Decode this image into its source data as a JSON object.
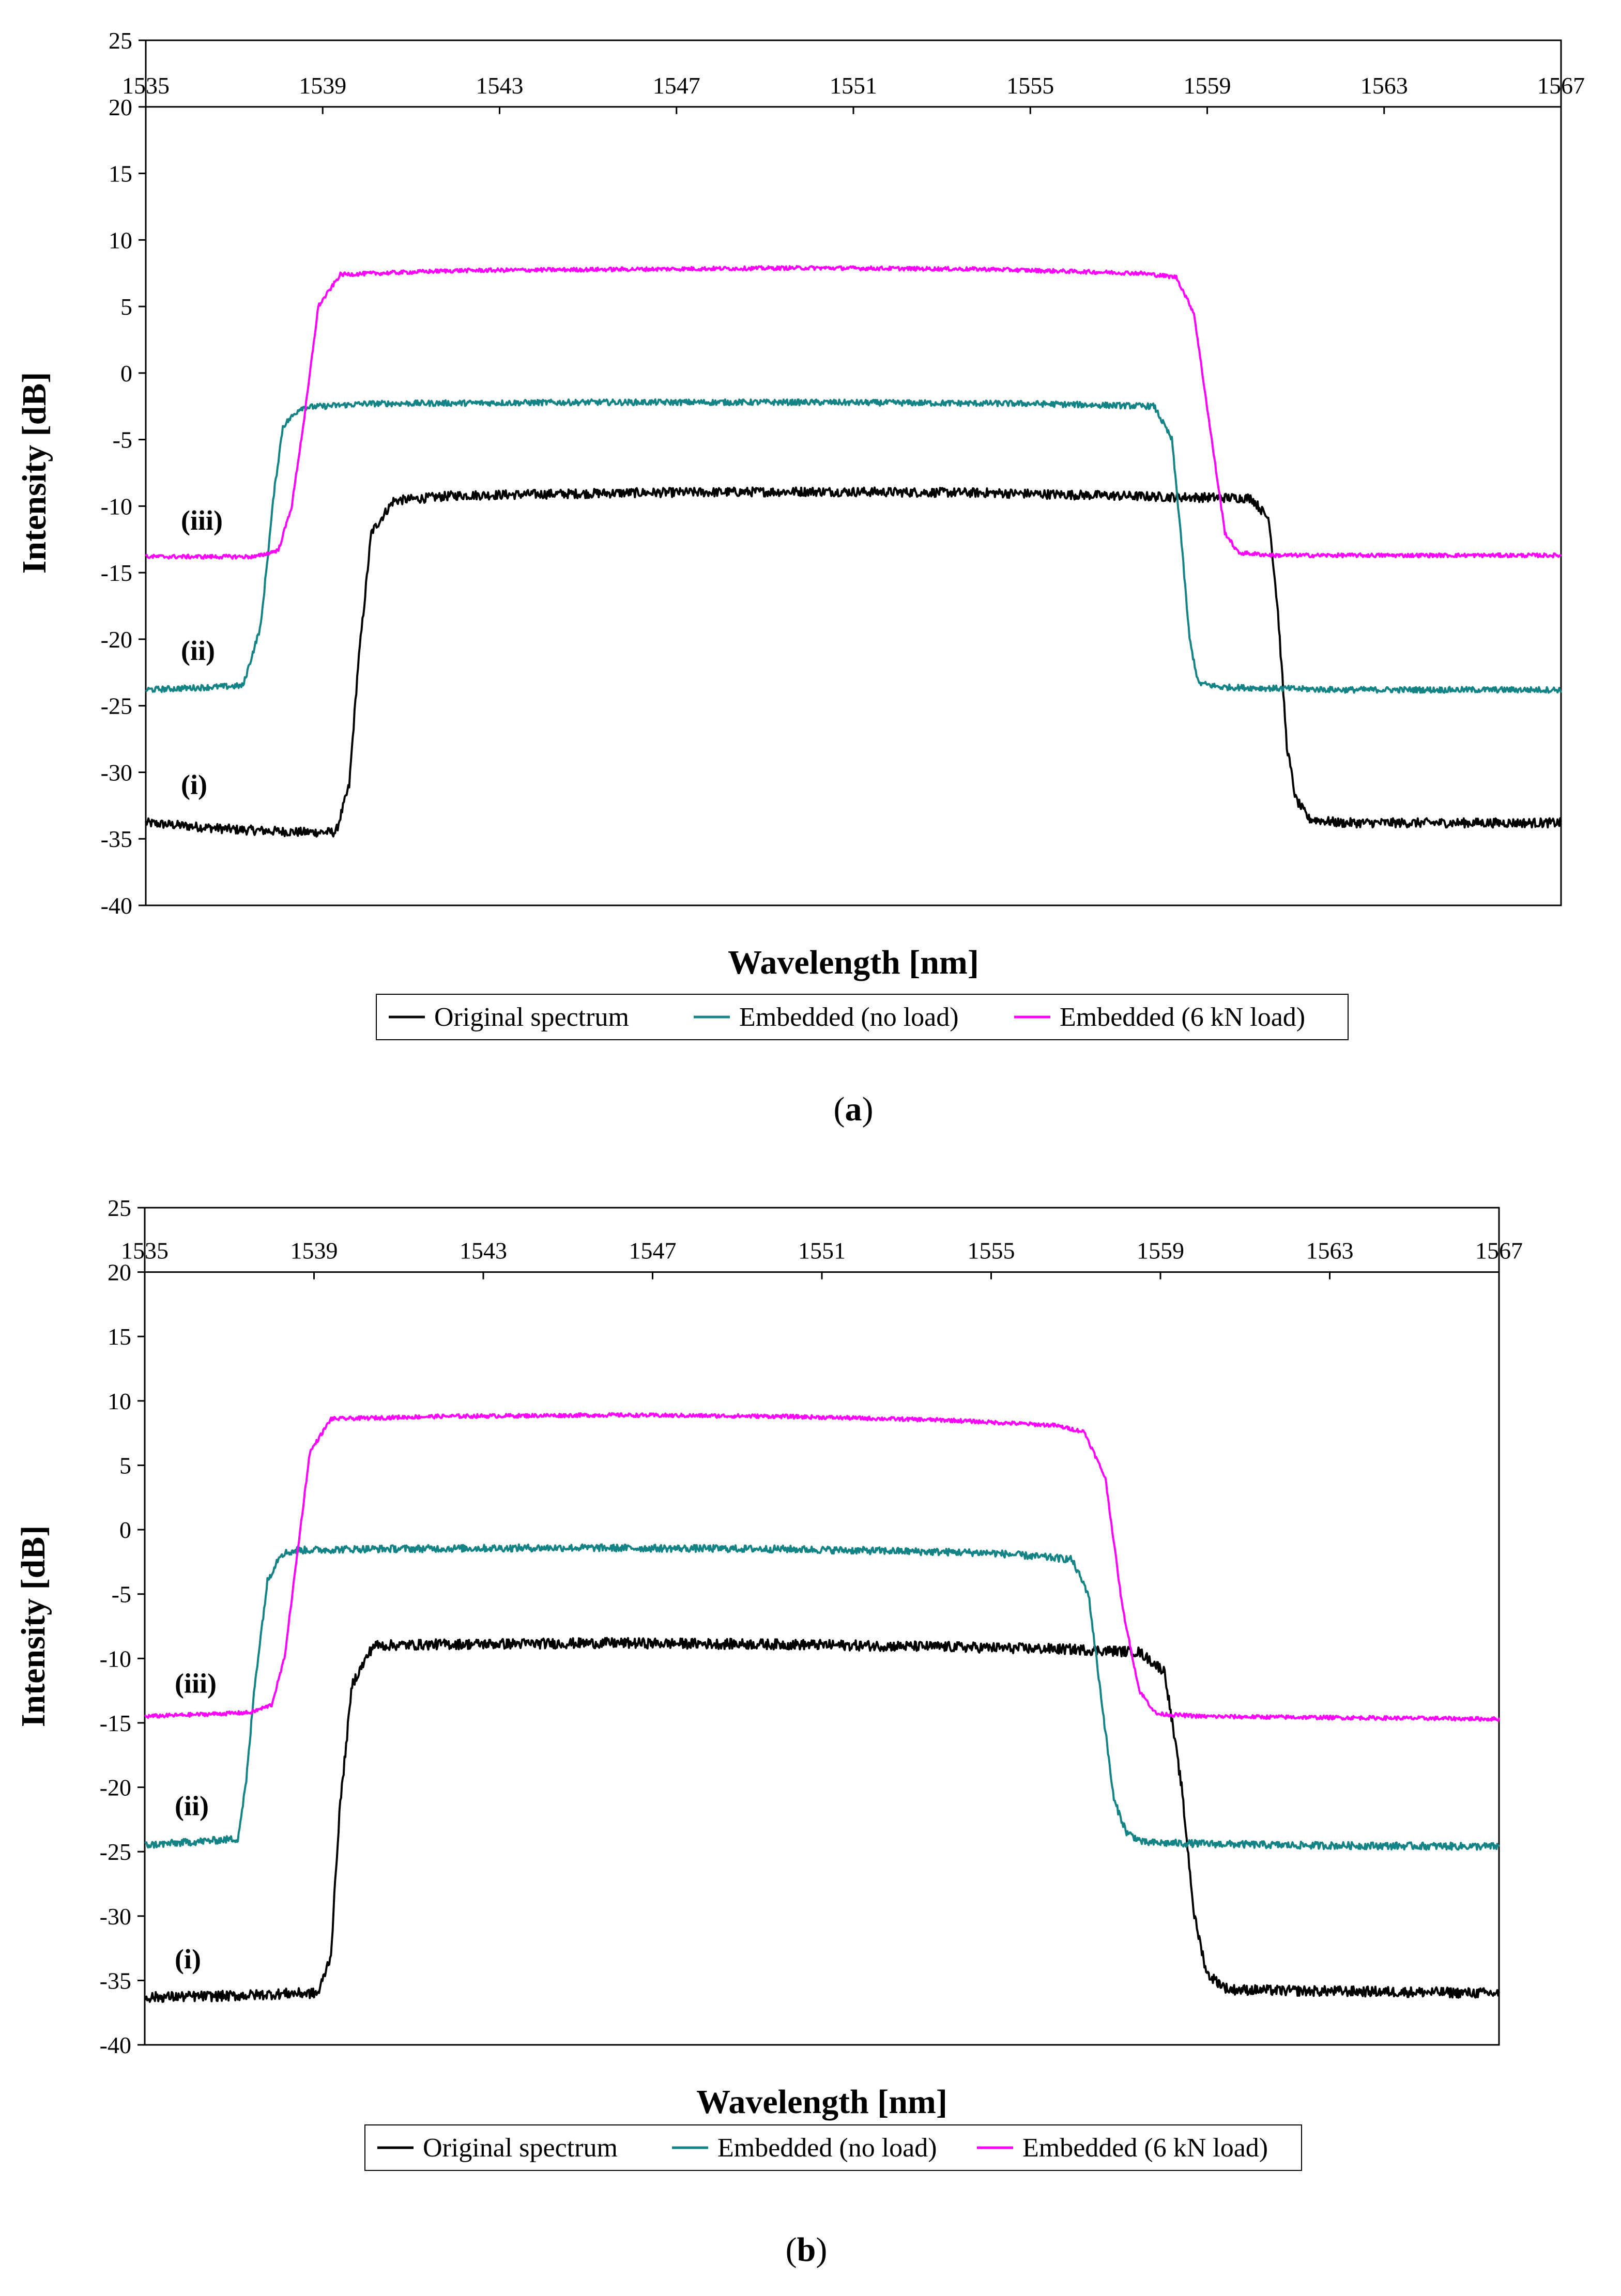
{
  "chart_data": [
    {
      "type": "line",
      "panel_label": "a",
      "title": "",
      "xlabel": "Wavelength [nm]",
      "ylabel": "Intensity [dB]",
      "xlim": [
        1535,
        1567
      ],
      "ylim": [
        -40,
        25
      ],
      "xticks": [
        "1535",
        "1539",
        "1543",
        "1547",
        "1551",
        "1555",
        "1559",
        "1563",
        "1567"
      ],
      "yticks": [
        "25",
        "20",
        "15",
        "10",
        "5",
        "0",
        "-5",
        "-10",
        "-15",
        "-20",
        "-25",
        "-30",
        "-35",
        "-40"
      ],
      "x_axis_position": "top, at y = 20",
      "legend_position": "bottom",
      "curve_labels": [
        {
          "text": "(iii)",
          "series": "Embedded (6 kN load)"
        },
        {
          "text": "(ii)",
          "series": "Embedded (no load)"
        },
        {
          "text": "(i)",
          "series": "Original spectrum"
        }
      ],
      "series": [
        {
          "name": "Original spectrum",
          "color": "#000000",
          "x": [
            1535,
            1537,
            1538.5,
            1539.3,
            1539.6,
            1539.8,
            1540.1,
            1540.6,
            1542,
            1546,
            1550,
            1554,
            1558,
            1560,
            1560.4,
            1560.6,
            1560.8,
            1561.0,
            1561.3,
            1562,
            1565,
            1567
          ],
          "y": [
            -33.8,
            -34.3,
            -34.5,
            -34.5,
            -31,
            -22,
            -12,
            -9.6,
            -9.2,
            -9.0,
            -8.9,
            -9.0,
            -9.3,
            -9.4,
            -11,
            -18,
            -28,
            -32,
            -33.5,
            -33.8,
            -33.8,
            -33.8
          ],
          "noise_db": 0.35
        },
        {
          "name": "Embedded (no load)",
          "color": "#138385",
          "x": [
            1535,
            1537.2,
            1537.6,
            1537.9,
            1538.1,
            1538.5,
            1540,
            1545,
            1550,
            1555,
            1557.8,
            1558.2,
            1558.4,
            1558.6,
            1558.8,
            1559.3,
            1562,
            1567
          ],
          "y": [
            -23.8,
            -23.5,
            -19,
            -9,
            -4,
            -2.6,
            -2.3,
            -2.2,
            -2.2,
            -2.3,
            -2.5,
            -5,
            -12,
            -20,
            -23.3,
            -23.6,
            -23.8,
            -23.8
          ],
          "noise_db": 0.22
        },
        {
          "name": "Embedded (6 kN load)",
          "color": "#ff00ff",
          "x": [
            1535,
            1537.5,
            1538,
            1538.3,
            1538.6,
            1538.9,
            1539.4,
            1542,
            1546,
            1550,
            1554,
            1557.5,
            1558.3,
            1558.7,
            1559.1,
            1559.4,
            1559.7,
            1560.5,
            1567
          ],
          "y": [
            -13.8,
            -13.8,
            -13.3,
            -10,
            -3,
            5,
            7.4,
            7.7,
            7.8,
            7.9,
            7.8,
            7.5,
            7.2,
            4.5,
            -5,
            -12,
            -13.5,
            -13.7,
            -13.7
          ],
          "noise_db": 0.15
        }
      ]
    },
    {
      "type": "line",
      "panel_label": "b",
      "title": "",
      "xlabel": "Wavelength [nm]",
      "ylabel": "Intensity [dB]",
      "xlim": [
        1535,
        1567
      ],
      "ylim": [
        -40,
        25
      ],
      "xticks": [
        "1535",
        "1539",
        "1543",
        "1547",
        "1551",
        "1555",
        "1559",
        "1563",
        "1567"
      ],
      "yticks": [
        "25",
        "20",
        "15",
        "10",
        "5",
        "0",
        "-5",
        "-10",
        "-15",
        "-20",
        "-25",
        "-30",
        "-35",
        "-40"
      ],
      "x_axis_position": "top, at y = 20",
      "legend_position": "bottom",
      "curve_labels": [
        {
          "text": "(iii)",
          "series": "Embedded (6 kN load)"
        },
        {
          "text": "(ii)",
          "series": "Embedded (no load)"
        },
        {
          "text": "(i)",
          "series": "Original spectrum"
        }
      ],
      "series": [
        {
          "name": "Original spectrum",
          "color": "#000000",
          "x": [
            1535,
            1537,
            1538.5,
            1539.1,
            1539.4,
            1539.6,
            1539.9,
            1540.4,
            1542,
            1546,
            1550,
            1554,
            1557,
            1558.5,
            1559.1,
            1559.5,
            1559.8,
            1560.1,
            1560.6,
            1562,
            1565,
            1567
          ],
          "y": [
            -36.3,
            -36.2,
            -36.0,
            -36.0,
            -33,
            -22,
            -12,
            -9.0,
            -8.9,
            -8.8,
            -8.9,
            -9.1,
            -9.3,
            -9.5,
            -11,
            -20,
            -30,
            -34.5,
            -35.7,
            -35.8,
            -35.9,
            -36.0
          ],
          "noise_db": 0.4
        },
        {
          "name": "Embedded (no load)",
          "color": "#138385",
          "x": [
            1535,
            1537.2,
            1537.4,
            1537.6,
            1537.9,
            1538.2,
            1538.6,
            1540,
            1545,
            1550,
            1555,
            1556.9,
            1557.3,
            1557.6,
            1557.9,
            1558.2,
            1558.6,
            1562,
            1567
          ],
          "y": [
            -24.5,
            -24.0,
            -19.5,
            -12,
            -4,
            -1.9,
            -1.6,
            -1.5,
            -1.4,
            -1.5,
            -1.8,
            -2.3,
            -5,
            -13,
            -21,
            -23.5,
            -24.3,
            -24.5,
            -24.6
          ],
          "noise_db": 0.28
        },
        {
          "name": "Embedded (6 kN load)",
          "color": "#ff00ff",
          "x": [
            1535,
            1537.5,
            1538,
            1538.3,
            1538.6,
            1538.9,
            1539.4,
            1542,
            1546,
            1550,
            1554,
            1556.5,
            1557.2,
            1557.7,
            1558.1,
            1558.5,
            1558.9,
            1560,
            1567
          ],
          "y": [
            -14.5,
            -14.2,
            -13.6,
            -10,
            -2,
            6,
            8.6,
            8.8,
            8.9,
            8.8,
            8.5,
            8.1,
            7.6,
            4,
            -6,
            -12.5,
            -14.3,
            -14.5,
            -14.7
          ],
          "noise_db": 0.15
        }
      ]
    }
  ]
}
